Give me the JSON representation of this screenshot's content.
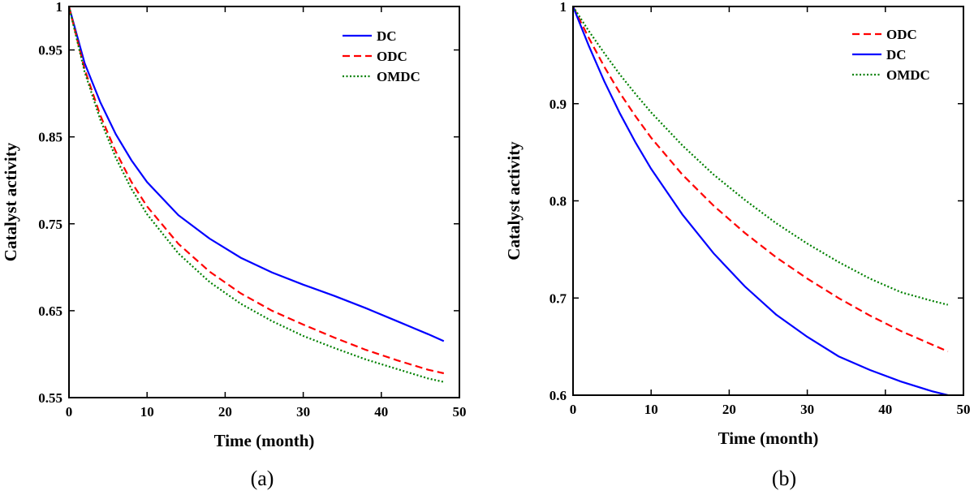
{
  "chart_data": [
    {
      "type": "line",
      "panel_label": "(a)",
      "xlabel": "Time (month)",
      "ylabel": "Catalyst activity",
      "xlim": [
        0,
        50
      ],
      "ylim": [
        0.55,
        1
      ],
      "xticks": [
        0,
        10,
        20,
        30,
        40,
        50
      ],
      "xtick_labels": [
        "0",
        "10",
        "20",
        "30",
        "40",
        "50"
      ],
      "yticks": [
        0.55,
        0.65,
        0.75,
        0.85,
        0.95,
        1
      ],
      "ytick_labels": [
        "0.55",
        "0.65",
        "0.75",
        "0.85",
        "0.95",
        "1"
      ],
      "legend_position": "top-right",
      "series": [
        {
          "name": "DC",
          "color": "#0000ff",
          "style": "solid",
          "x": [
            0,
            2,
            4,
            6,
            8,
            10,
            14,
            18,
            22,
            26,
            30,
            34,
            38,
            42,
            46,
            48
          ],
          "y": [
            1,
            0.935,
            0.89,
            0.853,
            0.823,
            0.798,
            0.76,
            0.733,
            0.711,
            0.694,
            0.68,
            0.667,
            0.653,
            0.638,
            0.623,
            0.615
          ]
        },
        {
          "name": "ODC",
          "color": "#ff0000",
          "style": "dashed",
          "x": [
            0,
            2,
            4,
            6,
            8,
            10,
            14,
            18,
            22,
            26,
            30,
            34,
            38,
            42,
            46,
            48
          ],
          "y": [
            1,
            0.928,
            0.875,
            0.833,
            0.798,
            0.77,
            0.727,
            0.695,
            0.67,
            0.65,
            0.634,
            0.619,
            0.605,
            0.593,
            0.582,
            0.578
          ]
        },
        {
          "name": "OMDC",
          "color": "#008000",
          "style": "dotted",
          "x": [
            0,
            2,
            4,
            6,
            8,
            10,
            14,
            18,
            22,
            26,
            30,
            34,
            38,
            42,
            46,
            48
          ],
          "y": [
            1,
            0.925,
            0.87,
            0.826,
            0.79,
            0.761,
            0.716,
            0.683,
            0.658,
            0.638,
            0.621,
            0.607,
            0.594,
            0.583,
            0.572,
            0.568
          ]
        }
      ]
    },
    {
      "type": "line",
      "panel_label": "(b)",
      "xlabel": "Time (month)",
      "ylabel": "Catalyst activity",
      "xlim": [
        0,
        50
      ],
      "ylim": [
        0.6,
        1
      ],
      "xticks": [
        0,
        10,
        20,
        30,
        40,
        50
      ],
      "xtick_labels": [
        "0",
        "10",
        "20",
        "30",
        "40",
        "50"
      ],
      "yticks": [
        0.6,
        0.7,
        0.8,
        0.9,
        1
      ],
      "ytick_labels": [
        "0.6",
        "0.7",
        "0.8",
        "0.9",
        "1"
      ],
      "legend_position": "top-right",
      "series": [
        {
          "name": "ODC",
          "color": "#ff0000",
          "style": "dashed",
          "x": [
            0,
            2,
            4,
            6,
            8,
            10,
            14,
            18,
            22,
            26,
            30,
            34,
            38,
            42,
            46,
            48
          ],
          "y": [
            1,
            0.968,
            0.938,
            0.911,
            0.887,
            0.865,
            0.827,
            0.795,
            0.767,
            0.742,
            0.72,
            0.7,
            0.682,
            0.666,
            0.652,
            0.645
          ]
        },
        {
          "name": "DC",
          "color": "#0000ff",
          "style": "solid",
          "x": [
            0,
            2,
            4,
            6,
            8,
            10,
            14,
            18,
            22,
            26,
            30,
            34,
            38,
            42,
            46,
            48
          ],
          "y": [
            1,
            0.96,
            0.923,
            0.89,
            0.86,
            0.833,
            0.786,
            0.746,
            0.712,
            0.683,
            0.66,
            0.64,
            0.626,
            0.614,
            0.604,
            0.6
          ]
        },
        {
          "name": "OMDC",
          "color": "#008000",
          "style": "dotted",
          "x": [
            0,
            2,
            4,
            6,
            8,
            10,
            14,
            18,
            22,
            26,
            30,
            34,
            38,
            42,
            46,
            48
          ],
          "y": [
            1,
            0.975,
            0.952,
            0.93,
            0.91,
            0.891,
            0.857,
            0.827,
            0.801,
            0.777,
            0.756,
            0.737,
            0.72,
            0.706,
            0.697,
            0.693
          ]
        }
      ]
    }
  ]
}
